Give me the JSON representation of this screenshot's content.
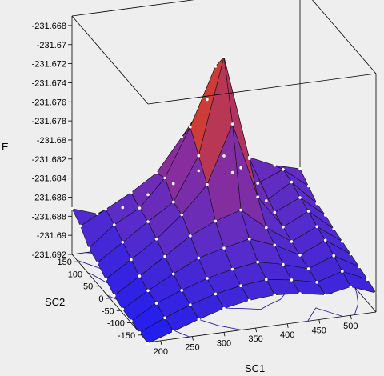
{
  "chart_data": {
    "type": "surface3d",
    "title": "",
    "xlabel": "SC1",
    "ylabel": "SC2",
    "zlabel": "E",
    "x_ticks": [
      "200",
      "250",
      "300",
      "350",
      "400",
      "450",
      "500"
    ],
    "y_ticks": [
      "150",
      "100",
      "50",
      "0",
      "-50",
      "-100",
      "-150"
    ],
    "z_ticks": [
      "-231.668",
      "-231.67",
      "-231.672",
      "-231.674",
      "-231.676",
      "-231.678",
      "-231.68",
      "-231.682",
      "-231.684",
      "-231.686",
      "-231.688",
      "-231.69",
      "-231.692"
    ],
    "xlim": [
      180,
      540
    ],
    "ylim": [
      -180,
      180
    ],
    "zlim": [
      -231.692,
      -231.667
    ],
    "x": [
      180,
      220,
      260,
      300,
      340,
      380,
      420,
      460,
      500,
      540
    ],
    "y": [
      180,
      140,
      100,
      60,
      20,
      -20,
      -60,
      -100,
      -140,
      -180
    ],
    "z": [
      [
        -231.6872,
        -231.6881,
        -231.6878,
        -231.6868,
        -231.686,
        -231.685,
        -231.6838,
        -231.6843,
        -231.6855,
        -231.6862
      ],
      [
        -231.688,
        -231.6866,
        -231.6852,
        -231.6835,
        -231.6801,
        -231.6765,
        -231.6845,
        -231.686,
        -231.6849,
        -231.687
      ],
      [
        -231.6893,
        -231.6872,
        -231.6858,
        -231.683,
        -231.678,
        -231.672,
        -231.683,
        -231.6868,
        -231.6852,
        -231.6878
      ],
      [
        -231.6898,
        -231.688,
        -231.6862,
        -231.6845,
        -231.68,
        -231.67,
        -231.681,
        -231.687,
        -231.6858,
        -231.688
      ],
      [
        -231.6905,
        -231.6888,
        -231.687,
        -231.6848,
        -231.682,
        -231.676,
        -231.684,
        -231.6875,
        -231.6862,
        -231.6884
      ],
      [
        -231.6912,
        -231.6895,
        -231.6878,
        -231.686,
        -231.6848,
        -231.684,
        -231.6862,
        -231.688,
        -231.6868,
        -231.6887
      ],
      [
        -231.6916,
        -231.69,
        -231.6886,
        -231.6873,
        -231.6866,
        -231.686,
        -231.687,
        -231.6884,
        -231.6872,
        -231.689
      ],
      [
        -231.6918,
        -231.6903,
        -231.6893,
        -231.6884,
        -231.6878,
        -231.6874,
        -231.688,
        -231.6888,
        -231.6878,
        -231.6893
      ],
      [
        -231.692,
        -231.6908,
        -231.6898,
        -231.689,
        -231.6885,
        -231.6882,
        -231.6886,
        -231.6892,
        -231.6884,
        -231.6896
      ],
      [
        -231.6921,
        -231.6912,
        -231.6903,
        -231.6895,
        -231.689,
        -231.6888,
        -231.689,
        -231.6895,
        -231.689,
        -231.69
      ]
    ],
    "colormap": [
      "#1e1ef0",
      "#5a2cc8",
      "#8a2d9a",
      "#c83a3a",
      "#ff4a10"
    ],
    "contour_colors": [
      "#2a1ea8",
      "#7a1f7a",
      "#c7351e"
    ],
    "background": "#eeeeee",
    "grid": false
  }
}
